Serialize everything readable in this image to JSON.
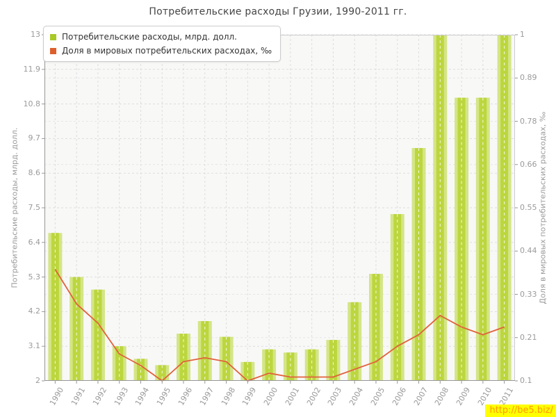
{
  "title": "Потребительские расходы Грузии, 1990-2011 гг.",
  "watermark": "http://be5.biz/",
  "colors": {
    "bar_edge": "#d4e587",
    "bar_center": "#bcd63e",
    "bar_dash": "#ffffff",
    "line": "#e2613c",
    "legend_bar_swatch": "#a9c926",
    "legend_line_swatch": "#dd5f2e",
    "grid": "#dddddd",
    "grid_right": "#e6e6e6",
    "axis": "#969696",
    "plot_border": "#cccccc",
    "tick_text": "#9a9a9a"
  },
  "chart_data": {
    "type": "bar",
    "subtype": "bar+line dual axis",
    "categories": [
      "1990",
      "1991",
      "1992",
      "1993",
      "1994",
      "1995",
      "1996",
      "1997",
      "1998",
      "1999",
      "2000",
      "2001",
      "2002",
      "2003",
      "2004",
      "2005",
      "2006",
      "2007",
      "2008",
      "2009",
      "2010",
      "2011"
    ],
    "series": [
      {
        "name": "Потребительские расходы, млрд. долл.",
        "type": "bar",
        "axis": "left",
        "values": [
          6.7,
          5.3,
          4.9,
          3.1,
          2.7,
          2.5,
          3.5,
          3.9,
          3.4,
          2.6,
          3.0,
          2.9,
          3.0,
          3.3,
          4.5,
          5.4,
          7.3,
          9.4,
          13.0,
          11.0,
          11.0,
          13.0
        ]
      },
      {
        "name": "Доля в мировых потребительских расходах, ‰",
        "type": "line",
        "axis": "right",
        "values": [
          0.39,
          0.3,
          0.25,
          0.17,
          0.14,
          0.1,
          0.15,
          0.16,
          0.15,
          0.1,
          0.12,
          0.11,
          0.11,
          0.11,
          0.13,
          0.15,
          0.19,
          0.22,
          0.27,
          0.24,
          0.22,
          0.24
        ]
      }
    ],
    "left_axis": {
      "label": "Потребительские расходы, млрд. долл.",
      "min": 2,
      "max": 13,
      "ticks": [
        "2",
        "3.1",
        "4.2",
        "5.3",
        "6.4",
        "7.5",
        "8.6",
        "9.7",
        "10.8",
        "11.9",
        "13"
      ]
    },
    "right_axis": {
      "label": "Доля в мировых потребительских расходах, ‰",
      "min": 0.1,
      "max": 1,
      "ticks": [
        "0.1",
        "0.21",
        "0.33",
        "0.44",
        "0.55",
        "0.66",
        "0.78",
        "0.89",
        "1"
      ]
    },
    "legend_position": "top-left",
    "grid": true
  }
}
